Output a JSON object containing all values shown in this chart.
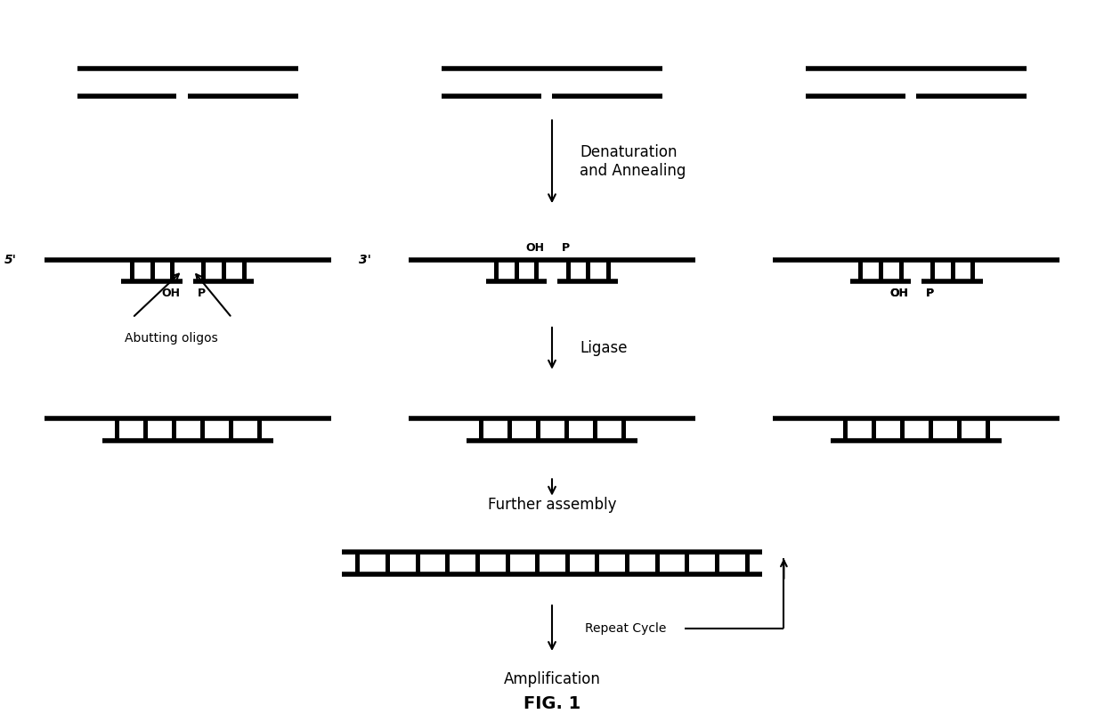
{
  "bg_color": "#ffffff",
  "line_color": "#000000",
  "fig_label": "FIG. 1",
  "label_fontsize": 12,
  "small_fontsize": 10,
  "tiny_fontsize": 9,
  "cols": [
    0.17,
    0.5,
    0.83
  ],
  "r1y": 0.905,
  "r2y": 0.64,
  "r3y": 0.42,
  "r4y": 0.235,
  "strand_lw": 4.0,
  "thin_lw": 1.5
}
